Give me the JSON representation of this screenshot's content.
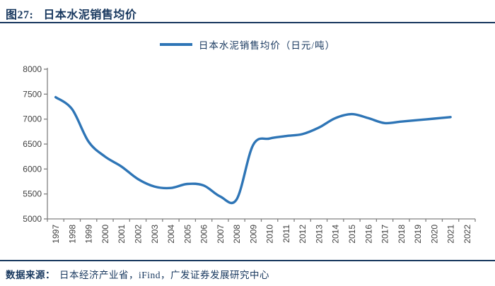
{
  "header": {
    "figure_label": "图27:",
    "title": "日本水泥销售均价"
  },
  "legend": {
    "label": "日本水泥销售均价（日元/吨）"
  },
  "footer": {
    "source_label": "数据来源：",
    "source_text": "日本经济产业省，iFind，广发证券发展研究中心"
  },
  "colors": {
    "line_blue": "#2E75B6",
    "navy_text": "#17375E",
    "axis_line": "#808080",
    "tick_text": "#3F3F3F"
  },
  "chart_data": {
    "type": "line",
    "title": "日本水泥销售均价",
    "xlabel": "",
    "ylabel": "",
    "categories": [
      1997,
      1998,
      1999,
      2000,
      2001,
      2002,
      2003,
      2004,
      2005,
      2006,
      2007,
      2008,
      2009,
      2010,
      2011,
      2012,
      2013,
      2014,
      2015,
      2016,
      2017,
      2018,
      2019,
      2020,
      2021,
      2022
    ],
    "series": [
      {
        "name": "日本水泥销售均价（日元/吨）",
        "color": "#2E75B6",
        "values": [
          7440,
          7200,
          6550,
          6250,
          6050,
          5800,
          5650,
          5620,
          5700,
          5670,
          5450,
          5390,
          6480,
          6610,
          6660,
          6700,
          6830,
          7020,
          7100,
          7020,
          6920,
          6950,
          6980,
          7010,
          7040,
          null
        ]
      }
    ],
    "ylim": [
      5000,
      8000
    ],
    "ytick_step": 500,
    "yticks": [
      5000,
      5500,
      6000,
      6500,
      7000,
      7500,
      8000
    ],
    "grid": false,
    "legend_position": "top",
    "x_label_rotation": -90,
    "line_smoothing": true
  }
}
